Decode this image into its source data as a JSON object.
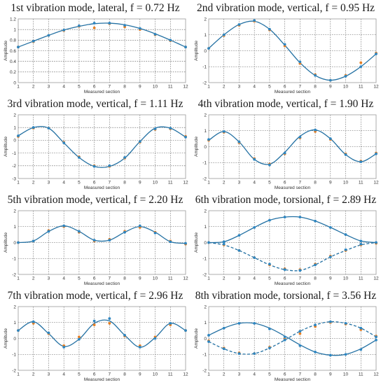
{
  "figure": {
    "colors": {
      "fit_line": "#2471a3",
      "measured_blue": "#2e86c1",
      "measured_orange": "#e67e22",
      "grid": "#555555",
      "frame": "#9a9a9a"
    }
  },
  "chart_data": [
    {
      "type": "line",
      "title": "1st vibration mode, lateral, f = 0.72 Hz",
      "xlabel": "Measured section",
      "ylabel": "Amplitude",
      "xlim": [
        1,
        12
      ],
      "ylim": [
        0,
        1.2
      ],
      "xticks": [
        "1",
        "2",
        "3",
        "4",
        "5",
        "6",
        "7",
        "8",
        "9",
        "10",
        "11",
        "12"
      ],
      "yticks": [
        "0",
        "0.2",
        "0.4",
        "0.6",
        "0.8",
        "1",
        "1.2"
      ],
      "grid": true,
      "series": [
        {
          "style": "solid",
          "x": [
            1,
            2,
            3,
            4,
            5,
            6,
            7,
            8,
            9,
            10,
            11,
            12
          ],
          "y": [
            0.67,
            0.78,
            0.89,
            0.99,
            1.06,
            1.11,
            1.12,
            1.09,
            1.02,
            0.92,
            0.8,
            0.67
          ],
          "marks_blue": [
            0.67,
            0.78,
            0.89,
            0.99,
            1.07,
            1.12,
            1.12,
            1.08,
            1.02,
            0.91,
            0.8,
            0.67
          ],
          "marks_orange": [
            0.67,
            0.77,
            0.89,
            0.98,
            1.06,
            1.03,
            1.11,
            1.05,
            1.0,
            0.9,
            0.79,
            0.67
          ]
        }
      ]
    },
    {
      "type": "line",
      "title": "2nd vibration mode, vertical, f = 0.95 Hz",
      "xlabel": "Measured section",
      "ylabel": "Amplitude",
      "xlim": [
        1,
        12
      ],
      "ylim": [
        -2,
        2
      ],
      "xticks": [
        "1",
        "2",
        "3",
        "4",
        "5",
        "6",
        "7",
        "8",
        "9",
        "10",
        "11",
        "12"
      ],
      "yticks": [
        "-2",
        "-1",
        "0",
        "1",
        "2"
      ],
      "grid": true,
      "series": [
        {
          "style": "solid",
          "x": [
            1,
            2,
            3,
            4,
            5,
            6,
            7,
            8,
            9,
            10,
            11,
            12
          ],
          "y": [
            0.15,
            1.0,
            1.65,
            1.85,
            1.35,
            0.35,
            -0.75,
            -1.55,
            -1.85,
            -1.6,
            -1.0,
            -0.2
          ],
          "marks_blue": [
            0.15,
            1.0,
            1.65,
            1.9,
            1.35,
            0.4,
            -0.7,
            -1.55,
            -1.85,
            -1.6,
            -1.0,
            -0.2
          ],
          "marks_orange": [
            0.15,
            0.95,
            1.6,
            1.85,
            1.3,
            0.3,
            -0.8,
            -1.5,
            -1.85,
            -1.55,
            -0.75,
            -0.15
          ]
        }
      ]
    },
    {
      "type": "line",
      "title": "3rd vibration mode, vertical, f = 1.11 Hz",
      "xlabel": "Measured section",
      "ylabel": "Amplitude",
      "xlim": [
        1,
        12
      ],
      "ylim": [
        -3,
        2
      ],
      "xticks": [
        "1",
        "2",
        "3",
        "4",
        "5",
        "6",
        "7",
        "8",
        "9",
        "10",
        "11",
        "12"
      ],
      "yticks": [
        "-3",
        "-2",
        "-1",
        "0",
        "1",
        "2"
      ],
      "grid": true,
      "series": [
        {
          "style": "solid",
          "x": [
            1,
            2,
            3,
            4,
            5,
            6,
            7,
            8,
            9,
            10,
            11,
            12
          ],
          "y": [
            0.35,
            1.0,
            0.95,
            -0.2,
            -1.35,
            -2.05,
            -2.05,
            -1.4,
            -0.1,
            0.95,
            0.95,
            0.25
          ],
          "marks_blue": [
            0.35,
            1.0,
            0.95,
            -0.2,
            -1.35,
            -2.05,
            -2.0,
            -1.35,
            -0.1,
            0.9,
            0.95,
            0.25
          ],
          "marks_orange": [
            0.3,
            0.95,
            0.95,
            -0.15,
            -1.3,
            -2.0,
            -2.05,
            -1.4,
            -0.15,
            0.85,
            0.9,
            0.3
          ]
        }
      ]
    },
    {
      "type": "line",
      "title": "4th vibration mode, vertical, f = 1.90 Hz",
      "xlabel": "Measured section",
      "ylabel": "Amplitude",
      "xlim": [
        1,
        12
      ],
      "ylim": [
        -2,
        2
      ],
      "xticks": [
        "1",
        "2",
        "3",
        "4",
        "5",
        "6",
        "7",
        "8",
        "9",
        "10",
        "11",
        "12"
      ],
      "yticks": [
        "-2",
        "-1",
        "0",
        "1",
        "2"
      ],
      "grid": true,
      "series": [
        {
          "style": "solid",
          "x": [
            1,
            2,
            3,
            4,
            5,
            6,
            7,
            8,
            9,
            10,
            11,
            12
          ],
          "y": [
            0.4,
            0.95,
            0.3,
            -0.8,
            -1.1,
            -0.35,
            0.65,
            1.05,
            0.5,
            -0.5,
            -0.95,
            -0.45
          ],
          "marks_blue": [
            0.45,
            0.95,
            0.3,
            -0.8,
            -1.15,
            -0.4,
            0.6,
            1.05,
            0.5,
            -0.5,
            -0.95,
            -0.45
          ],
          "marks_orange": [
            0.4,
            0.9,
            0.25,
            -0.75,
            -1.1,
            -0.45,
            0.55,
            0.95,
            0.45,
            -0.45,
            -0.9,
            -0.4
          ]
        }
      ]
    },
    {
      "type": "line",
      "title": "5th vibration mode, vertical, f = 2.20 Hz",
      "xlabel": "Measured section",
      "ylabel": "Amplitude",
      "xlim": [
        1,
        12
      ],
      "ylim": [
        -2,
        2
      ],
      "xticks": [
        "1",
        "2",
        "3",
        "4",
        "5",
        "6",
        "7",
        "8",
        "9",
        "10",
        "11",
        "12"
      ],
      "yticks": [
        "-2",
        "-1",
        "0",
        "1",
        "2"
      ],
      "grid": true,
      "series": [
        {
          "style": "solid",
          "x": [
            1,
            2,
            3,
            4,
            5,
            6,
            7,
            8,
            9,
            10,
            11,
            12
          ],
          "y": [
            0.0,
            0.1,
            0.7,
            1.05,
            0.7,
            0.15,
            0.15,
            0.65,
            1.0,
            0.65,
            0.05,
            -0.05
          ],
          "marks_blue": [
            0.0,
            0.1,
            0.7,
            1.05,
            0.7,
            0.15,
            0.15,
            0.65,
            1.05,
            0.6,
            0.05,
            -0.05
          ],
          "marks_orange": [
            0.0,
            0.1,
            0.75,
            1.0,
            0.65,
            0.1,
            0.2,
            0.7,
            0.95,
            0.65,
            0.1,
            -0.1
          ]
        }
      ]
    },
    {
      "type": "line",
      "title": "6th vibration mode, torsional, f = 2.89 Hz",
      "xlabel": "Measured section",
      "ylabel": "Amplitude",
      "xlim": [
        1,
        12
      ],
      "ylim": [
        -2,
        2
      ],
      "xticks": [
        "1",
        "2",
        "3",
        "4",
        "5",
        "6",
        "7",
        "8",
        "9",
        "10",
        "11",
        "12"
      ],
      "yticks": [
        "-2",
        "-1",
        "0",
        "1",
        "2"
      ],
      "grid": true,
      "series": [
        {
          "style": "solid",
          "x": [
            1,
            2,
            3,
            4,
            5,
            6,
            7,
            8,
            9,
            10,
            11,
            12
          ],
          "y": [
            0.0,
            0.05,
            0.45,
            0.95,
            1.4,
            1.6,
            1.6,
            1.35,
            0.95,
            0.5,
            0.1,
            0.0
          ],
          "marks_blue": [
            0.0,
            0.05,
            0.45,
            0.95,
            1.4,
            1.6,
            1.6,
            1.35,
            0.95,
            0.5,
            0.1,
            0.0
          ],
          "marks_orange": []
        },
        {
          "style": "dashed",
          "x": [
            1,
            2,
            3,
            4,
            5,
            6,
            7,
            8,
            9,
            10,
            11,
            12
          ],
          "y": [
            0.0,
            -0.15,
            -0.5,
            -0.95,
            -1.4,
            -1.7,
            -1.75,
            -1.4,
            -0.9,
            -0.5,
            -0.15,
            0.0
          ],
          "marks_blue": [
            0.0,
            -0.1,
            -0.5,
            -0.95,
            -1.35,
            -1.7,
            -1.75,
            -1.4,
            -0.9,
            -0.45,
            -0.1,
            0.0
          ],
          "marks_orange": [
            0.0,
            -0.15,
            -0.5,
            -0.95,
            -1.4,
            -1.65,
            -1.7,
            -1.35,
            -0.85,
            -0.5,
            -0.15,
            -0.05
          ]
        }
      ]
    },
    {
      "type": "line",
      "title": "7th vibration mode, vertical, f = 2.96 Hz",
      "xlabel": "Measured section",
      "ylabel": "Amplitude",
      "xlim": [
        1,
        12
      ],
      "ylim": [
        -2,
        2
      ],
      "xticks": [
        "1",
        "2",
        "3",
        "4",
        "5",
        "6",
        "7",
        "8",
        "9",
        "10",
        "11",
        "12"
      ],
      "yticks": [
        "-2",
        "-1",
        "0",
        "1",
        "2"
      ],
      "grid": true,
      "series": [
        {
          "style": "solid",
          "x": [
            1,
            2,
            3,
            4,
            5,
            6,
            7,
            8,
            9,
            10,
            11,
            12
          ],
          "y": [
            0.5,
            1.05,
            0.3,
            -0.5,
            -0.05,
            0.95,
            1.1,
            0.2,
            -0.55,
            0.05,
            0.95,
            0.5
          ],
          "marks_blue": [
            0.5,
            1.05,
            0.35,
            -0.55,
            -0.05,
            1.1,
            1.25,
            0.2,
            -0.55,
            0.0,
            0.95,
            0.5
          ],
          "marks_orange": [
            0.5,
            0.95,
            0.3,
            -0.45,
            0.1,
            0.85,
            0.95,
            0.15,
            -0.45,
            0.1,
            0.85,
            0.5
          ]
        }
      ]
    },
    {
      "type": "line",
      "title": "8th vibration mode, torsional, f = 3.56 Hz",
      "xlabel": "Measured section",
      "ylabel": "Amplitude",
      "xlim": [
        1,
        12
      ],
      "ylim": [
        -2,
        2
      ],
      "xticks": [
        "1",
        "2",
        "3",
        "4",
        "5",
        "6",
        "7",
        "8",
        "9",
        "10",
        "11",
        "12"
      ],
      "yticks": [
        "-2",
        "-1",
        "0",
        "1",
        "2"
      ],
      "grid": true,
      "series": [
        {
          "style": "solid",
          "x": [
            1,
            2,
            3,
            4,
            5,
            6,
            7,
            8,
            9,
            10,
            11,
            12
          ],
          "y": [
            0.2,
            0.65,
            0.95,
            0.95,
            0.65,
            0.15,
            -0.4,
            -0.85,
            -1.05,
            -1.0,
            -0.65,
            -0.1
          ],
          "marks_blue": [
            0.2,
            0.65,
            0.95,
            0.95,
            0.6,
            0.1,
            -0.45,
            -0.85,
            -1.05,
            -1.0,
            -0.7,
            -0.1
          ],
          "marks_orange": []
        },
        {
          "style": "dashed",
          "x": [
            1,
            2,
            3,
            4,
            5,
            6,
            7,
            8,
            9,
            10,
            11,
            12
          ],
          "y": [
            -0.2,
            -0.65,
            -0.95,
            -0.95,
            -0.6,
            -0.1,
            0.45,
            0.85,
            1.05,
            0.95,
            0.65,
            0.1
          ],
          "marks_blue": [
            -0.2,
            -0.65,
            -0.95,
            -0.95,
            -0.6,
            -0.1,
            0.45,
            0.85,
            1.05,
            0.95,
            0.65,
            0.1
          ],
          "marks_orange": [
            -0.15,
            -0.6,
            -0.9,
            -0.95,
            -0.55,
            -0.05,
            0.3,
            0.75,
            1.0,
            0.9,
            0.55,
            0.15
          ]
        }
      ]
    }
  ]
}
